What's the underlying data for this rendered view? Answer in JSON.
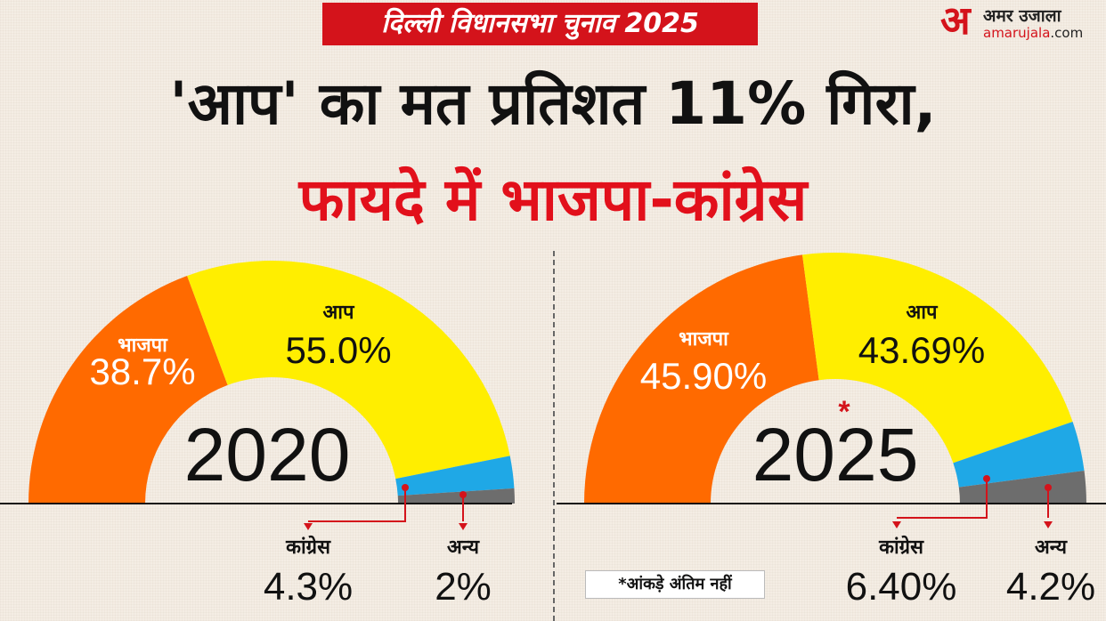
{
  "banner": "दिल्ली विधानसभा चुनाव 2025",
  "logo": {
    "mark": "अ",
    "name": "अमर उजाला",
    "url_main": "amarujala",
    "url_domain": ".com"
  },
  "headline_line1": "'आप' का मत प्रतिशत 11% गिरा,",
  "headline_line2": "फायदे में भाजपा-कांग्रेस",
  "footnote": "*आंकड़े अंतिम नहीं",
  "colors": {
    "bjp": "#ff6a00",
    "aap": "#ffee00",
    "congress": "#1fa8e6",
    "others": "#6d6d6d",
    "pointer": "#d4131b"
  },
  "chart_data": [
    {
      "type": "pie",
      "variant": "half-donut",
      "center_label": "2020",
      "slices": [
        {
          "label": "भाजपा",
          "display": "38.7%",
          "value": 38.7
        },
        {
          "label": "आप",
          "display": "55.0%",
          "value": 55.0
        },
        {
          "label": "कांग्रेस",
          "display": "4.3%",
          "value": 4.3
        },
        {
          "label": "अन्य",
          "display": "2%",
          "value": 2
        }
      ]
    },
    {
      "type": "pie",
      "variant": "half-donut",
      "center_label": "2025",
      "asterisk": "*",
      "slices": [
        {
          "label": "भाजपा",
          "display": "45.90%",
          "value": 45.9
        },
        {
          "label": "आप",
          "display": "43.69%",
          "value": 43.69
        },
        {
          "label": "कांग्रेस",
          "display": "6.40%",
          "value": 6.4
        },
        {
          "label": "अन्य",
          "display": "4.2%",
          "value": 4.2
        }
      ]
    }
  ]
}
